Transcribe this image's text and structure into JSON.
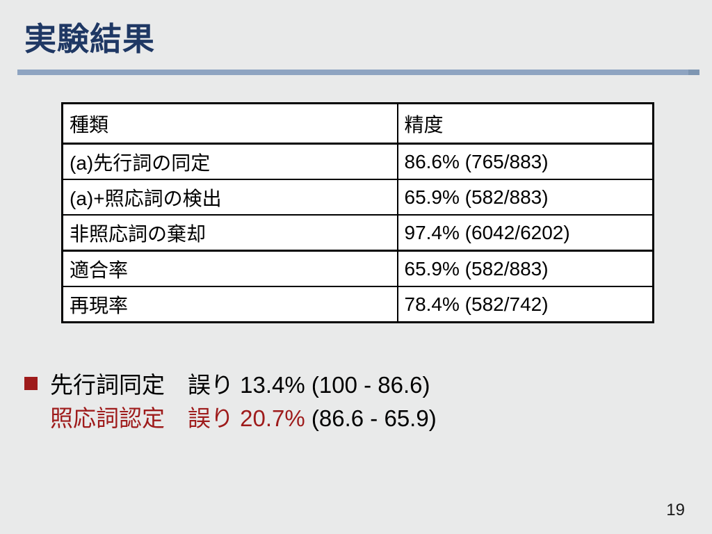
{
  "page": {
    "title": "実験結果",
    "page_number": "19"
  },
  "colors": {
    "background": "#e9eaea",
    "title_navy": "#1f3864",
    "divider_blue": "#8ea4c1",
    "divider_end_blue": "#7e96b2",
    "accent_dark_red": "#9e1b1b",
    "table_border": "#000000",
    "table_background": "#ffffff"
  },
  "table": {
    "headers": [
      "種類",
      "精度"
    ],
    "rows": [
      {
        "type": "(a)先行詞の同定",
        "accuracy": "86.6% (765/883)"
      },
      {
        "type": "(a)+照応詞の検出",
        "accuracy": "65.9% (582/883)"
      },
      {
        "type": "非照応詞の棄却",
        "accuracy": "97.4% (6042/6202)"
      },
      {
        "type": "適合率",
        "accuracy": "65.9% (582/883)"
      },
      {
        "type": "再現率",
        "accuracy": "78.4% (582/742)"
      }
    ]
  },
  "bullet": {
    "line1": "先行詞同定　誤り 13.4% (100 - 86.6)",
    "line2_red": "照応詞認定　誤り 20.7% ",
    "line2_black": "(86.6 - 65.9)"
  }
}
